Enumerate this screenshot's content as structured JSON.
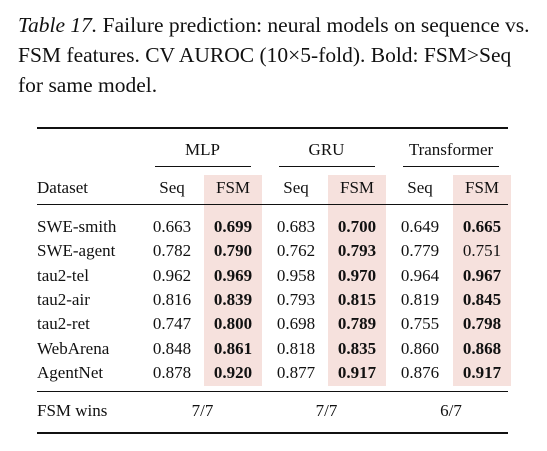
{
  "caption": {
    "label": "Table 17.",
    "text": "Failure prediction: neural models on sequence vs. FSM features. CV AUROC (10×5-fold). Bold: FSM>Seq for same model."
  },
  "table": {
    "groups": [
      "MLP",
      "GRU",
      "Transformer"
    ],
    "columns": [
      "Dataset",
      "Seq",
      "FSM",
      "Seq",
      "FSM",
      "Seq",
      "FSM"
    ],
    "rows": [
      [
        "SWE-smith",
        "0.663",
        "0.699",
        "0.683",
        "0.700",
        "0.649",
        "0.665"
      ],
      [
        "SWE-agent",
        "0.782",
        "0.790",
        "0.762",
        "0.793",
        "0.779",
        "0.751"
      ],
      [
        "tau2-tel",
        "0.962",
        "0.969",
        "0.958",
        "0.970",
        "0.964",
        "0.967"
      ],
      [
        "tau2-air",
        "0.816",
        "0.839",
        "0.793",
        "0.815",
        "0.819",
        "0.845"
      ],
      [
        "tau2-ret",
        "0.747",
        "0.800",
        "0.698",
        "0.789",
        "0.755",
        "0.798"
      ],
      [
        "WebArena",
        "0.848",
        "0.861",
        "0.818",
        "0.835",
        "0.860",
        "0.868"
      ],
      [
        "AgentNet",
        "0.878",
        "0.920",
        "0.877",
        "0.917",
        "0.876",
        "0.917"
      ]
    ],
    "footer": [
      "FSM wins",
      "7/7",
      "7/7",
      "6/7"
    ]
  }
}
